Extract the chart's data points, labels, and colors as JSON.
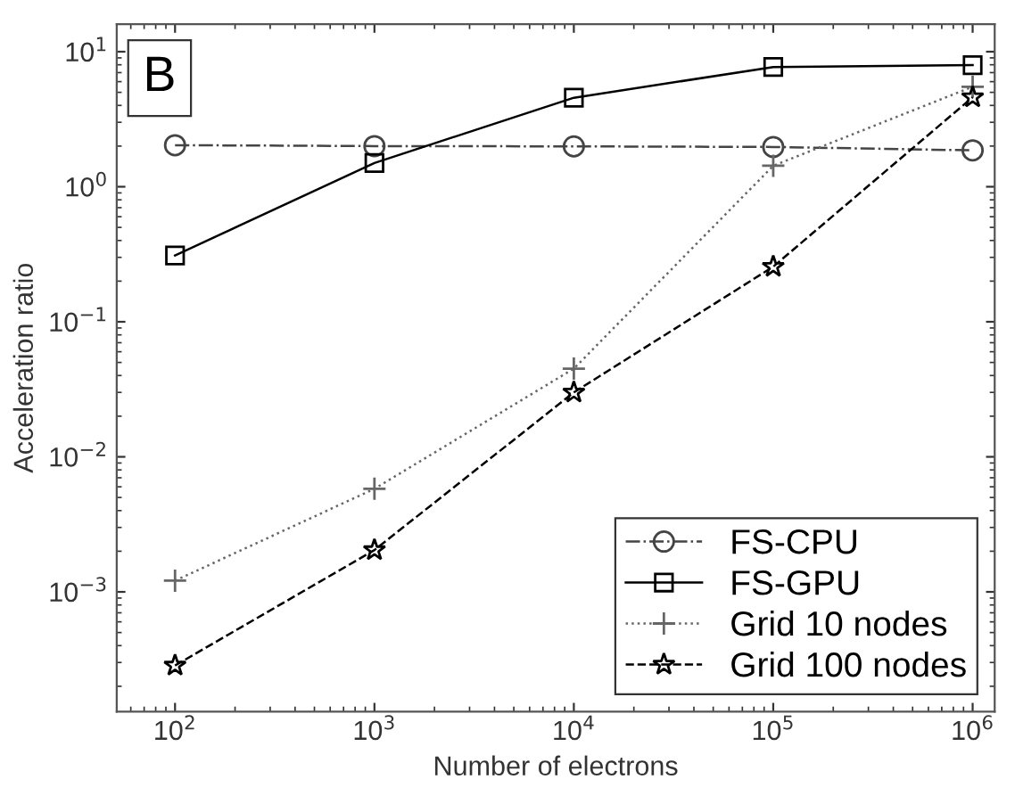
{
  "chart_data": {
    "type": "line",
    "xlabel": "Number of electrons",
    "ylabel": "Acceleration ratio",
    "annotations": [
      "B"
    ],
    "x": [
      100,
      1000,
      10000,
      100000,
      1000000
    ],
    "series": [
      {
        "name": "FS-CPU",
        "color": "#444444",
        "marker": "circle",
        "line_style": "dashdot",
        "values": [
          2.03,
          2.0,
          1.99,
          1.97,
          1.86
        ]
      },
      {
        "name": "FS-GPU",
        "color": "#000000",
        "marker": "square",
        "line_style": "solid",
        "values": [
          0.31,
          1.5,
          4.56,
          7.7,
          7.95
        ]
      },
      {
        "name": "Grid 10 nodes",
        "color": "#666666",
        "marker": "cross",
        "line_style": "dotted",
        "values": [
          0.00121,
          0.0058,
          0.045,
          1.43,
          5.5
        ]
      },
      {
        "name": "Grid 100 nodes",
        "color": "#000000",
        "marker": "star",
        "line_style": "dashed",
        "values": [
          0.000285,
          0.00204,
          0.03,
          0.256,
          4.6
        ]
      }
    ],
    "log": "xy",
    "xlim": [
      51,
      1290000
    ],
    "ylim": [
      0.00013,
      16
    ],
    "xticks": [
      {
        "value": 100,
        "label": "10$^{2}$"
      },
      {
        "value": 1000,
        "label": "10$^{3}$"
      },
      {
        "value": 10000,
        "label": "10$^{4}$"
      },
      {
        "value": 100000,
        "label": "10$^{5}$"
      },
      {
        "value": 1000000,
        "label": "10$^{6}$"
      }
    ],
    "yticks": [
      {
        "value": 0.001,
        "label": "10$^{−3}$"
      },
      {
        "value": 0.01,
        "label": "10$^{−2}$"
      },
      {
        "value": 0.1,
        "label": "10$^{−1}$"
      },
      {
        "value": 1,
        "label": "10$^{0}$"
      },
      {
        "value": 10,
        "label": "10$^{1}$"
      }
    ],
    "grid": false,
    "legend": "bottom right"
  }
}
